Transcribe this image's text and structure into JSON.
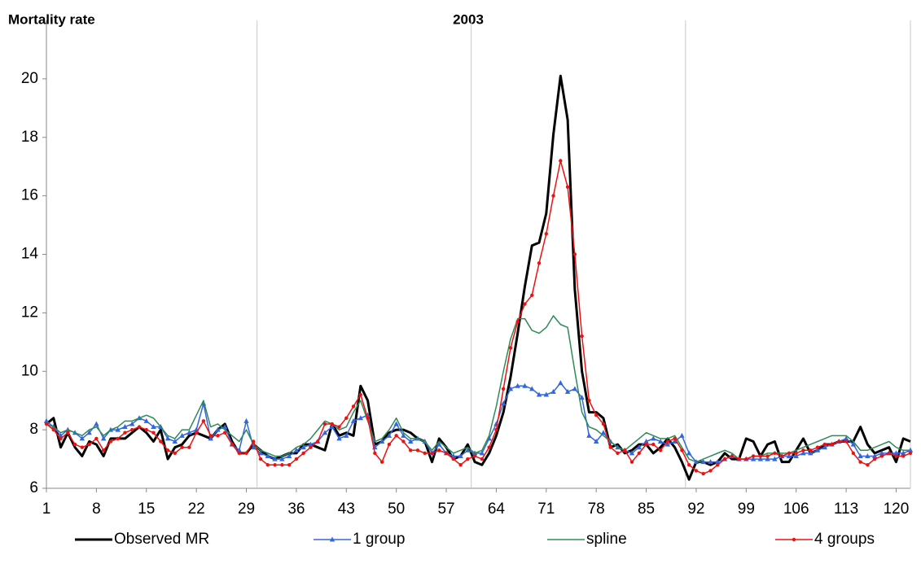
{
  "chart_data": {
    "type": "line",
    "title": "2003",
    "y_label": "Mortality rate",
    "x": [
      1,
      2,
      3,
      4,
      5,
      6,
      7,
      8,
      9,
      10,
      11,
      12,
      13,
      14,
      15,
      16,
      17,
      18,
      19,
      20,
      21,
      22,
      23,
      24,
      25,
      26,
      27,
      28,
      29,
      30,
      31,
      32,
      33,
      34,
      35,
      36,
      37,
      38,
      39,
      40,
      41,
      42,
      43,
      44,
      45,
      46,
      47,
      48,
      49,
      50,
      51,
      52,
      53,
      54,
      55,
      56,
      57,
      58,
      59,
      60,
      61,
      62,
      63,
      64,
      65,
      66,
      67,
      68,
      69,
      70,
      71,
      72,
      73,
      74,
      75,
      76,
      77,
      78,
      79,
      80,
      81,
      82,
      83,
      84,
      85,
      86,
      87,
      88,
      89,
      90,
      91,
      92,
      93,
      94,
      95,
      96,
      97,
      98,
      99,
      100,
      101,
      102,
      103,
      104,
      105,
      106,
      107,
      108,
      109,
      110,
      111,
      112,
      113,
      114,
      115,
      116,
      117,
      118,
      119,
      120,
      121,
      122
    ],
    "xlim": [
      1,
      122
    ],
    "xticks": [
      1,
      8,
      15,
      22,
      29,
      36,
      43,
      50,
      57,
      64,
      71,
      78,
      85,
      92,
      99,
      106,
      113,
      120
    ],
    "x_grid": [
      30.5,
      60.5,
      90.5,
      122
    ],
    "ylim": [
      6,
      22
    ],
    "yticks": [
      6,
      8,
      10,
      12,
      14,
      16,
      18,
      20
    ],
    "legend": "bottom",
    "series": [
      {
        "name": "Observed MR",
        "color": "#000000",
        "line_width": 3,
        "marker": null,
        "values": [
          8.2,
          8.4,
          7.4,
          7.9,
          7.4,
          7.1,
          7.6,
          7.5,
          7.1,
          7.7,
          7.7,
          7.7,
          7.9,
          8.1,
          7.9,
          7.6,
          8.0,
          7.0,
          7.4,
          7.5,
          7.8,
          7.9,
          7.8,
          7.7,
          8.0,
          8.2,
          7.6,
          7.2,
          7.2,
          7.5,
          7.3,
          7.1,
          7.0,
          7.1,
          7.2,
          7.2,
          7.5,
          7.5,
          7.4,
          7.3,
          8.2,
          7.8,
          7.9,
          7.8,
          9.5,
          9.0,
          7.5,
          7.6,
          7.9,
          8.0,
          8.0,
          7.9,
          7.7,
          7.6,
          6.9,
          7.7,
          7.4,
          7.0,
          7.1,
          7.5,
          6.9,
          6.8,
          7.2,
          7.8,
          8.6,
          9.8,
          11.3,
          12.9,
          14.3,
          14.4,
          15.4,
          18.1,
          20.1,
          18.6,
          12.8,
          10.0,
          8.6,
          8.6,
          8.4,
          7.4,
          7.5,
          7.2,
          7.3,
          7.5,
          7.5,
          7.2,
          7.4,
          7.7,
          7.4,
          6.9,
          6.3,
          6.9,
          6.9,
          6.8,
          6.9,
          7.2,
          7.0,
          7.0,
          7.7,
          7.6,
          7.1,
          7.5,
          7.6,
          6.9,
          6.9,
          7.3,
          7.7,
          7.2,
          7.3,
          7.5,
          7.5,
          7.6,
          7.6,
          7.6,
          8.1,
          7.5,
          7.2,
          7.3,
          7.4,
          6.9,
          7.7,
          7.6
        ]
      },
      {
        "name": "1 group",
        "color": "#3366dd",
        "line_width": 1.5,
        "marker": "triangle",
        "values": [
          8.3,
          8.1,
          7.8,
          8.0,
          7.9,
          7.7,
          7.9,
          8.2,
          7.7,
          8.0,
          8.0,
          8.1,
          8.2,
          8.4,
          8.3,
          8.1,
          8.1,
          7.7,
          7.6,
          7.8,
          7.9,
          8.0,
          8.9,
          7.7,
          8.0,
          8.1,
          7.5,
          7.3,
          8.3,
          7.4,
          7.2,
          7.1,
          7.0,
          7.0,
          7.1,
          7.3,
          7.4,
          7.5,
          7.6,
          7.9,
          8.1,
          7.7,
          7.8,
          8.3,
          8.4,
          8.5,
          7.4,
          7.6,
          7.8,
          8.2,
          7.8,
          7.6,
          7.7,
          7.6,
          7.2,
          7.5,
          7.2,
          7.1,
          7.1,
          7.3,
          7.2,
          7.2,
          7.7,
          8.2,
          8.9,
          9.4,
          9.5,
          9.5,
          9.4,
          9.2,
          9.2,
          9.3,
          9.6,
          9.3,
          9.4,
          9.1,
          7.8,
          7.6,
          7.9,
          7.6,
          7.4,
          7.3,
          7.2,
          7.4,
          7.6,
          7.7,
          7.6,
          7.5,
          7.6,
          7.8,
          7.2,
          6.9,
          6.9,
          6.9,
          6.9,
          7.0,
          7.1,
          7.0,
          7.0,
          7.0,
          7.0,
          7.0,
          7.0,
          7.1,
          7.1,
          7.1,
          7.2,
          7.2,
          7.3,
          7.4,
          7.5,
          7.6,
          7.7,
          7.5,
          7.1,
          7.1,
          7.1,
          7.2,
          7.2,
          7.2,
          7.2,
          7.3
        ]
      },
      {
        "name": "spline",
        "color": "#2e8b57",
        "line_width": 1.5,
        "marker": null,
        "values": [
          8.2,
          8.1,
          7.9,
          8.0,
          7.9,
          7.8,
          8.0,
          8.1,
          7.8,
          8.0,
          8.1,
          8.3,
          8.3,
          8.4,
          8.5,
          8.4,
          8.1,
          7.8,
          7.7,
          8.0,
          8.0,
          8.5,
          9.0,
          8.1,
          8.2,
          8.0,
          7.8,
          7.6,
          8.0,
          7.5,
          7.3,
          7.2,
          7.1,
          7.1,
          7.2,
          7.4,
          7.5,
          7.7,
          8.0,
          8.3,
          8.2,
          8.0,
          8.1,
          8.6,
          9.0,
          8.3,
          7.6,
          7.7,
          8.0,
          8.4,
          7.9,
          7.7,
          7.7,
          7.6,
          7.3,
          7.6,
          7.4,
          7.2,
          7.3,
          7.4,
          7.2,
          7.3,
          7.8,
          8.8,
          10.0,
          11.1,
          11.8,
          11.8,
          11.4,
          11.3,
          11.5,
          11.9,
          11.6,
          11.5,
          10.0,
          8.6,
          8.1,
          8.0,
          7.8,
          7.6,
          7.4,
          7.3,
          7.5,
          7.7,
          7.9,
          7.8,
          7.7,
          7.7,
          7.8,
          7.4,
          7.0,
          6.9,
          7.0,
          7.1,
          7.2,
          7.3,
          7.2,
          7.0,
          7.0,
          7.1,
          7.1,
          7.2,
          7.2,
          7.2,
          7.2,
          7.3,
          7.4,
          7.5,
          7.6,
          7.7,
          7.8,
          7.8,
          7.8,
          7.6,
          7.3,
          7.3,
          7.4,
          7.5,
          7.6,
          7.4,
          7.3,
          7.3
        ]
      },
      {
        "name": "4 groups",
        "color": "#ee1111",
        "line_width": 1.5,
        "marker": "circle",
        "values": [
          8.2,
          8.0,
          7.7,
          7.9,
          7.5,
          7.4,
          7.5,
          7.7,
          7.3,
          7.6,
          7.7,
          7.9,
          8.0,
          8.1,
          8.0,
          7.9,
          7.6,
          7.3,
          7.2,
          7.4,
          7.4,
          7.9,
          8.3,
          7.8,
          7.8,
          7.9,
          7.5,
          7.2,
          7.2,
          7.6,
          7.0,
          6.8,
          6.8,
          6.8,
          6.8,
          7.0,
          7.2,
          7.4,
          7.6,
          8.2,
          8.2,
          8.1,
          8.4,
          8.8,
          9.2,
          8.4,
          7.2,
          6.9,
          7.5,
          7.8,
          7.6,
          7.3,
          7.3,
          7.2,
          7.2,
          7.3,
          7.2,
          7.0,
          6.8,
          7.0,
          7.1,
          7.0,
          7.4,
          8.0,
          9.4,
          10.8,
          11.7,
          12.3,
          12.6,
          13.7,
          14.7,
          16.0,
          17.2,
          16.3,
          14.0,
          11.2,
          9.0,
          8.5,
          8.2,
          7.4,
          7.2,
          7.3,
          6.9,
          7.2,
          7.5,
          7.5,
          7.3,
          7.6,
          7.7,
          7.3,
          6.8,
          6.6,
          6.5,
          6.6,
          6.8,
          7.0,
          7.1,
          7.0,
          7.0,
          7.1,
          7.1,
          7.1,
          7.2,
          7.1,
          7.2,
          7.2,
          7.3,
          7.3,
          7.4,
          7.5,
          7.5,
          7.6,
          7.6,
          7.2,
          6.9,
          6.8,
          7.0,
          7.1,
          7.2,
          7.1,
          7.1,
          7.2
        ]
      }
    ]
  }
}
